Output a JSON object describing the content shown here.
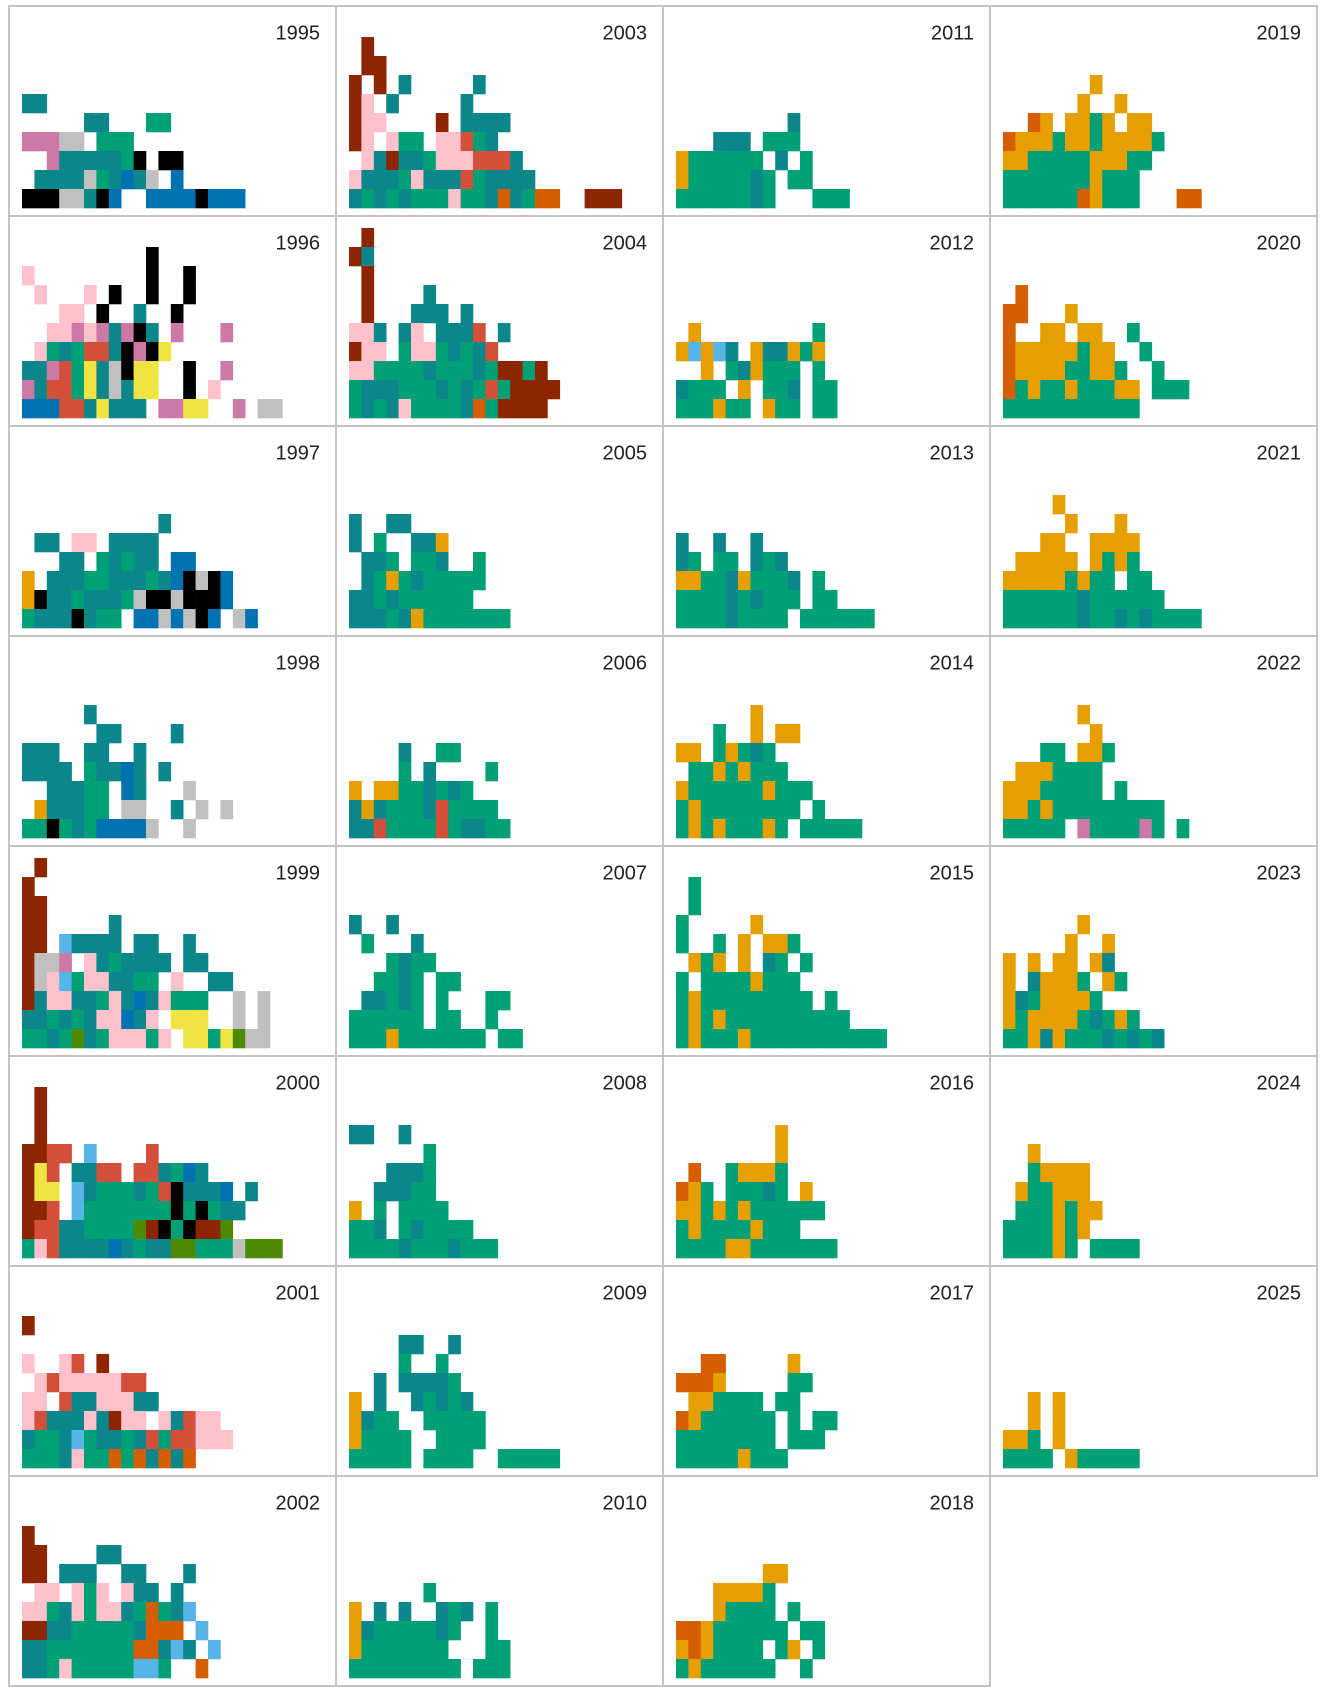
{
  "chart_data": {
    "type": "waffle-grid",
    "palette": {
      "t": "#0b878c",
      "g": "#00a077",
      "o": "#e69f00",
      "r": "#8c2500",
      "d": "#d55e00",
      "c": "#d2503a",
      "p": "#ffc1cc",
      "m": "#cc79a7",
      "k": "#000000",
      "s": "#c0c0c0",
      "b": "#0072b2",
      "l": "#56b4e9",
      "y": "#f0e442",
      "v": "#4e8a00"
    },
    "panels": [
      {
        "year": "1995",
        "rows": [
          "tt",
          ".....tt...gg",
          "mmmss.ggg",
          "..mtttttgk.kk",
          ".ttttsgtbts.b",
          "kkksstkb..bbbbkbbb"
        ]
      },
      {
        "year": "1996",
        "rows": [
          "..........k",
          "p.........k..k",
          ".p...p.k..k..k",
          "...pp.k..t..k",
          "..ppmpmtmkt.m...m",
          ".pgtgcctkmky....",
          "ttmcgytskyy..k..m",
          "mtccgytstyy..k.p",
          "bbbcctyttt.mmyy..m.ss"
        ]
      },
      {
        "year": "1997",
        "rows": [
          "...........t",
          ".tt.pp.tttt.",
          "...tt.gtgtt.bb",
          "o.tttggtttgtbkskb",
          "okttgtttgskkskkkb",
          "gtttktgg.bbsbskb.sb"
        ]
      },
      {
        "year": "1998",
        "rows": [
          ".....t",
          "......tt....t",
          "ttt..tt..t",
          "tttt.gttbt.t",
          "..tttgg.bt...s",
          ".otttgg.ss..t.s.s",
          "ggkgtgbbbbs..s"
        ]
      },
      {
        "year": "1999",
        "rows": [
          ".r",
          "r",
          "rr",
          "rr.....t",
          "rr.ltttt.tt..t",
          "rssm.ptgtttt.tt",
          "rsplgppttgg.p..tt..",
          "rtppttgptbtpggg..s.s",
          "ttgtgtppbtp.yyy..s.s",
          "ggtgvtgpppgp.yygyvss"
        ]
      },
      {
        "year": "2000",
        "rows": [
          ".r",
          ".r",
          ".r",
          "rrcc.l....c",
          "ryc.ttcc.cctgbt",
          "ryy.ltgggtgcktttb.t",
          "rrc.lgggggggkgkgtt..",
          "rccttggggvrkgkrrv",
          "gpcttttbtgttvvgggsvvv"
        ]
      },
      {
        "year": "2001",
        "rows": [
          "r",
          "",
          "p..pc.r",
          ".pcpppppcc",
          "pp.cttppptt",
          "pctttptrpp.ptcpp",
          "tggtlgttgtcgccppp",
          "gggtpggdgdtdtd"
        ]
      },
      {
        "year": "2002",
        "rows": [
          "r",
          "rr....tt",
          "rr.ttt..tt...t",
          ".pp.pgp.ptt.t",
          "ppgtpgpptgdgtl",
          "rrttgggggtddd.l",
          "ttgggggggddtlt.l",
          "ttgpgggggllg..d"
        ]
      },
      {
        "year": "2003",
        "rows": [
          ".r",
          ".rr",
          "r.r.t.....t",
          "rp.t.....t",
          "rpp....r.tttt",
          "rp.pgg.ppcgt.",
          ".ptrttgpppccct.",
          "ptttgptttcgtttt",
          "tgtgtgggpggtdtgdd..rrr"
        ]
      },
      {
        "year": "2004",
        "rows": [
          ".r",
          "rt",
          ".r",
          ".r....t",
          ".r...ttt.t",
          "ppt.tp.tttc.t",
          "rpp.gppgtgtc",
          "ppggggtgggtgrrgr",
          "gtttgggtgtgcgrrrr",
          "gtgtpggggtdgrrrr"
        ]
      },
      {
        "year": "2005",
        "rows": [
          "t..tt",
          "t.g..tto",
          ".ttg.ggt..g",
          ".tgogtggggg",
          "ttgtgggggg",
          "tttgtoggggggg"
        ]
      },
      {
        "year": "2006",
        "rows": [
          "....t..gg",
          "....g.t....g",
          "o.ooggtgtg",
          "totgggtcgggg",
          "ttcggggcgttgg"
        ]
      },
      {
        "year": "2007",
        "rows": [
          "t..t",
          ".g...t",
          "...gtgg",
          "..ggtg.gg",
          ".ttgtg.g...gg",
          "gggggg.gg..g",
          "gggoggggggg.gg"
        ]
      },
      {
        "year": "2008",
        "rows": [
          "tt..t",
          "......g",
          "...tttg",
          "..tttgg",
          "o.g.gggg",
          "ggt.gtgggg",
          "ggggtgggtggg"
        ]
      },
      {
        "year": "2009",
        "rows": [
          "....tt..t",
          "....g..g",
          "..t.ttttg",
          "o.t..tgtgt",
          "otgg..ggggg",
          "ogggg..gggg",
          "ggggg.gggg..ggggg"
        ]
      },
      {
        "year": "2010",
        "rows": [
          "......g",
          "o.t.t..tgt.g",
          "otgggggtg..g",
          "oggggggg...gg",
          "ggggggggg.ggg"
        ]
      },
      {
        "year": "2011",
        "rows": [
          ".........t",
          "...ttt.ggg",
          "ogggggg.t.g",
          "ogggggtg.gg",
          "ggggggtg...ggg"
        ]
      },
      {
        "year": "2012",
        "rows": [
          ".o.........g",
          "ololt.ottogo",
          "..o.gtoggg.g",
          "tggg.o.ggt.gg",
          "gggogg.ogg.gg"
        ]
      },
      {
        "year": "2013",
        "rows": [
          "t..t..t",
          "tg.gg.tgt",
          "ooggtogggt.g",
          "ggggtgtggg.gg",
          "ggggtgggg.gggggg"
        ]
      },
      {
        "year": "2014",
        "rows": [
          "......o",
          "...g..o.oo",
          "oo.gogtg",
          ".ggogoggg",
          "oggggggoggg",
          "gogggggggg.g",
          "gogogggog.ggggg"
        ]
      },
      {
        "year": "2015",
        "rows": [
          ".g",
          ".g",
          "g.....o",
          "g..g.o.oog",
          ".ogo.o.tg.g",
          "g.ggggoggg.",
          "goggggggggg.g",
          "gogogggggggggg",
          "gogggoggggggggggg"
        ]
      },
      {
        "year": "2016",
        "rows": [
          "........o",
          "........o",
          ".d..gooog",
          "dog.gggtg.o",
          "oogogogggggg",
          "goggggoggg",
          "ggggooggggggg"
        ]
      },
      {
        "year": "2017",
        "rows": [
          "..dd.....o",
          "dddo.....gg",
          ".oogggg.gg.",
          "dogggggg.g.gg",
          "gggggggg.ggg",
          "gggggoggg"
        ]
      },
      {
        "year": "2018",
        "rows": [
          ".......oo",
          "...oooog",
          "...ogggg.g.",
          "ddogggggg.gg",
          "odogggg.go.g",
          "gogggggg..g"
        ]
      },
      {
        "year": "2019",
        "rows": [
          ".......o",
          "......o..o",
          "..do.oogo.oo",
          "dooogoogoooog",
          "oogggggooogg",
          "gggggggoggg",
          "ggggggdoggg...dd"
        ]
      },
      {
        "year": "2020",
        "rows": [
          ".d",
          "dd...o",
          "d..oo.oo..g",
          "dooooogoo..g",
          "dooooggoog..g.",
          "dgoggogggoo.ggg",
          "ggggggggggg"
        ]
      },
      {
        "year": "2021",
        "rows": [
          "....o",
          ".....o...o",
          "...oo..oooo",
          ".ooooo.ogog",
          "ooooogogg.gg",
          "ggggggtgggggg",
          "ggggggtggtgtgggg"
        ]
      },
      {
        "year": "2022",
        "rows": [
          "......o",
          ".......o",
          "...gg.oog",
          ".ooogggg",
          "oooggggg.g",
          "oogoggggggggg",
          "ggggg.mggggmg.g"
        ]
      },
      {
        "year": "2023",
        "rows": [
          "......o",
          ".....o..o",
          "o.o.oo.ot",
          "o.tooog.og",
          "otgoooog",
          "ogoooogtgog",
          "ggotogggtgtgt"
        ]
      },
      {
        "year": "2024",
        "rows": [
          "..o",
          "..goooo",
          ".oggooo",
          ".gggogoo",
          "ggggogo",
          "ggggog.gggg"
        ]
      },
      {
        "year": "2025",
        "rows": [
          "..o.o",
          "..o.o",
          "oog.o",
          "gggg.oggggg"
        ]
      }
    ]
  }
}
